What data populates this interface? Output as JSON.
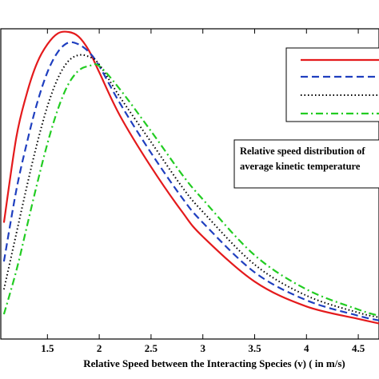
{
  "chart_data": {
    "type": "line",
    "xlabel": "Relative Speed between the Interacting Species (v)  ( in m/s)",
    "ylabel": "",
    "xlim": [
      1.05,
      4.7
    ],
    "ylim": [
      0,
      1.0
    ],
    "x_ticks": [
      "1.5",
      "2",
      "2.5",
      "3",
      "3.5",
      "4",
      "4.5"
    ],
    "grid": false,
    "legend": {
      "placement": "top-right",
      "entries": [
        "",
        "",
        "",
        ""
      ]
    },
    "annotation": [
      "Relative speed distribution of",
      "average kinetic temperature"
    ],
    "colors": {
      "series_1": "#e41a1c",
      "series_2": "#1f3fbf",
      "series_3": "#000000",
      "series_4": "#22cc22"
    },
    "series": [
      {
        "color": "#e41a1c",
        "dash": "solid",
        "x": [
          1.08,
          1.2,
          1.3,
          1.4,
          1.5,
          1.6,
          1.7,
          1.8,
          1.9,
          2.0,
          2.2,
          2.5,
          2.8,
          3.0,
          3.5,
          4.0,
          4.5,
          4.7
        ],
        "y": [
          0.375,
          0.65,
          0.79,
          0.89,
          0.95,
          0.985,
          0.99,
          0.975,
          0.93,
          0.86,
          0.72,
          0.555,
          0.41,
          0.33,
          0.185,
          0.105,
          0.065,
          0.05
        ]
      },
      {
        "color": "#1f3fbf",
        "dash": "dashed",
        "x": [
          1.08,
          1.2,
          1.3,
          1.4,
          1.5,
          1.6,
          1.7,
          1.8,
          1.9,
          2.0,
          2.2,
          2.5,
          2.8,
          3.0,
          3.5,
          4.0,
          4.5,
          4.7
        ],
        "y": [
          0.25,
          0.48,
          0.63,
          0.76,
          0.86,
          0.925,
          0.955,
          0.95,
          0.925,
          0.88,
          0.76,
          0.6,
          0.455,
          0.375,
          0.215,
          0.125,
          0.075,
          0.06
        ]
      },
      {
        "color": "#000000",
        "dash": "dotted",
        "x": [
          1.08,
          1.2,
          1.3,
          1.4,
          1.5,
          1.6,
          1.7,
          1.8,
          1.9,
          2.0,
          2.2,
          2.5,
          2.8,
          3.0,
          3.5,
          4.0,
          4.5,
          4.7
        ],
        "y": [
          0.16,
          0.34,
          0.49,
          0.63,
          0.75,
          0.84,
          0.895,
          0.915,
          0.91,
          0.885,
          0.78,
          0.635,
          0.49,
          0.41,
          0.24,
          0.14,
          0.085,
          0.07
        ]
      },
      {
        "color": "#22cc22",
        "dash": "dashdot",
        "x": [
          1.08,
          1.2,
          1.3,
          1.4,
          1.5,
          1.6,
          1.7,
          1.8,
          1.9,
          2.0,
          2.2,
          2.5,
          2.8,
          3.0,
          3.5,
          4.0,
          4.5,
          4.7
        ],
        "y": [
          0.08,
          0.22,
          0.36,
          0.5,
          0.63,
          0.74,
          0.82,
          0.865,
          0.88,
          0.88,
          0.805,
          0.67,
          0.53,
          0.45,
          0.27,
          0.16,
          0.095,
          0.075
        ]
      }
    ]
  }
}
